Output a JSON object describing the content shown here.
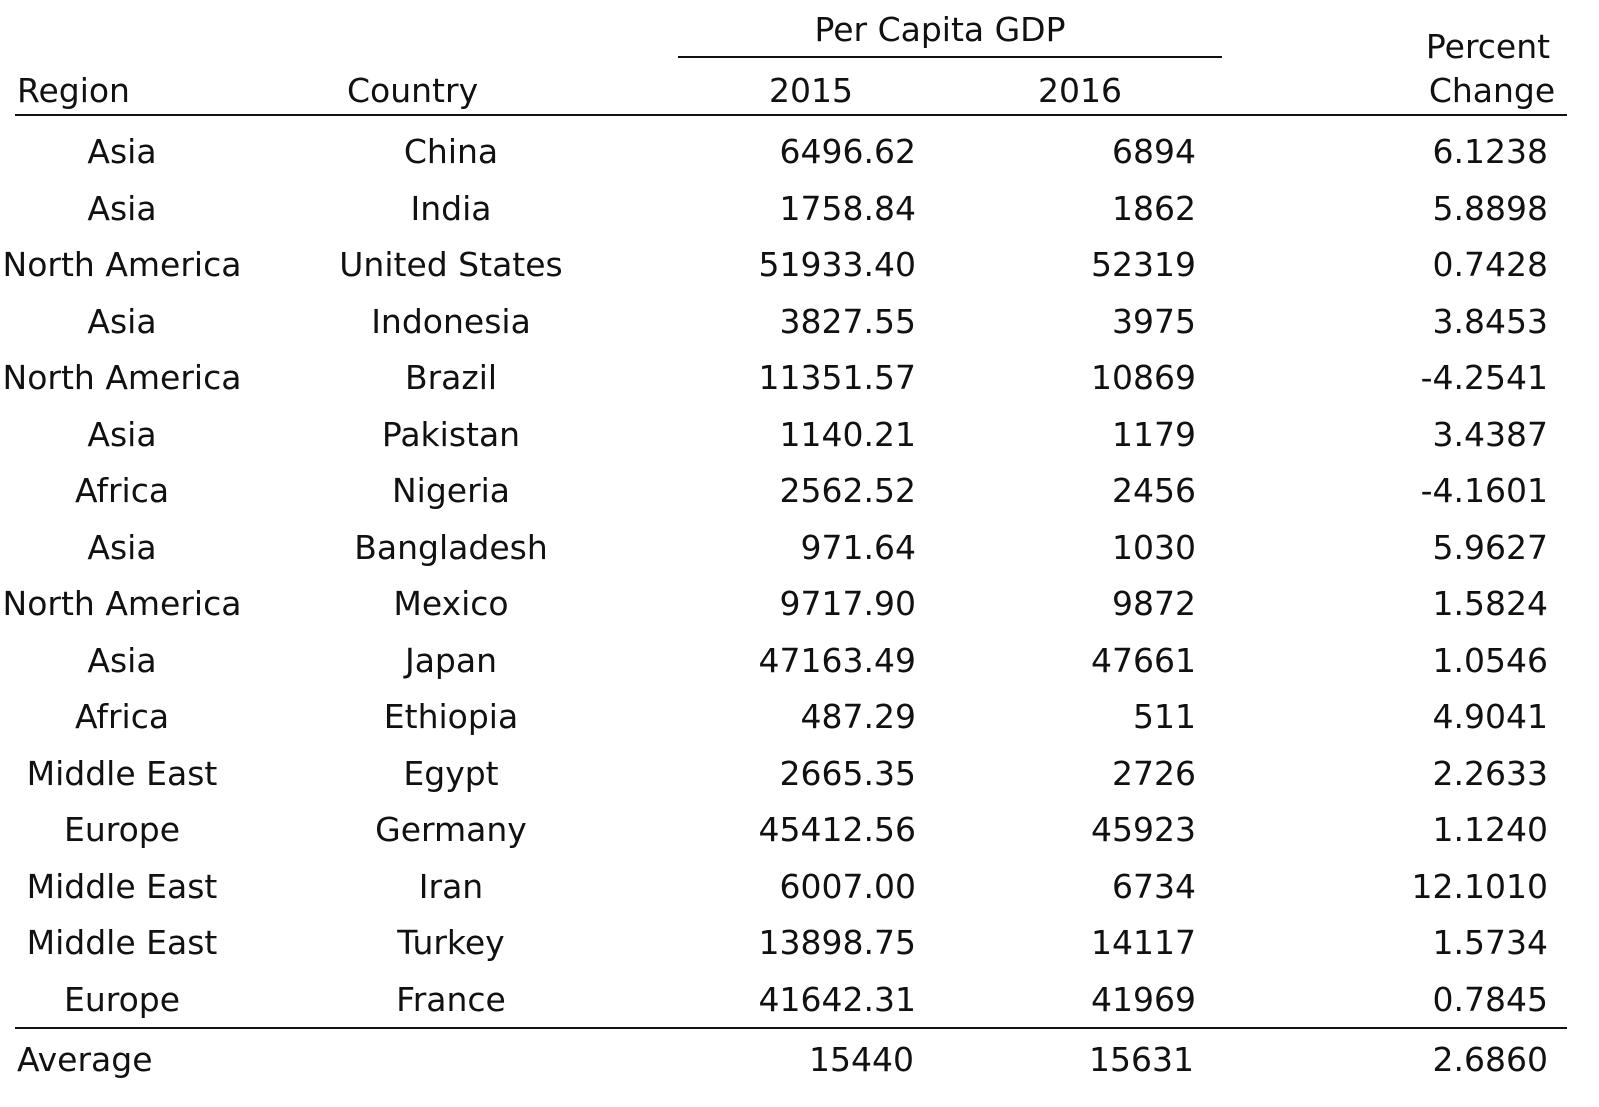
{
  "table": {
    "group_header": "Per Capita GDP",
    "headers": {
      "region": "Region",
      "country": "Country",
      "year1": "2015",
      "year2": "2016",
      "percent_line1": "Percent",
      "percent_line2": "Change"
    },
    "rows": [
      {
        "region": "Asia",
        "country": "China",
        "gdp2015": "6496.62",
        "gdp2016": "6894",
        "change": "6.1238"
      },
      {
        "region": "Asia",
        "country": "India",
        "gdp2015": "1758.84",
        "gdp2016": "1862",
        "change": "5.8898"
      },
      {
        "region": "North America",
        "country": "United States",
        "gdp2015": "51933.40",
        "gdp2016": "52319",
        "change": "0.7428"
      },
      {
        "region": "Asia",
        "country": "Indonesia",
        "gdp2015": "3827.55",
        "gdp2016": "3975",
        "change": "3.8453"
      },
      {
        "region": "North America",
        "country": "Brazil",
        "gdp2015": "11351.57",
        "gdp2016": "10869",
        "change": "-4.2541"
      },
      {
        "region": "Asia",
        "country": "Pakistan",
        "gdp2015": "1140.21",
        "gdp2016": "1179",
        "change": "3.4387"
      },
      {
        "region": "Africa",
        "country": "Nigeria",
        "gdp2015": "2562.52",
        "gdp2016": "2456",
        "change": "-4.1601"
      },
      {
        "region": "Asia",
        "country": "Bangladesh",
        "gdp2015": "971.64",
        "gdp2016": "1030",
        "change": "5.9627"
      },
      {
        "region": "North America",
        "country": "Mexico",
        "gdp2015": "9717.90",
        "gdp2016": "9872",
        "change": "1.5824"
      },
      {
        "region": "Asia",
        "country": "Japan",
        "gdp2015": "47163.49",
        "gdp2016": "47661",
        "change": "1.0546"
      },
      {
        "region": "Africa",
        "country": "Ethiopia",
        "gdp2015": "487.29",
        "gdp2016": "511",
        "change": "4.9041"
      },
      {
        "region": "Middle East",
        "country": "Egypt",
        "gdp2015": "2665.35",
        "gdp2016": "2726",
        "change": "2.2633"
      },
      {
        "region": "Europe",
        "country": "Germany",
        "gdp2015": "45412.56",
        "gdp2016": "45923",
        "change": "1.1240"
      },
      {
        "region": "Middle East",
        "country": "Iran",
        "gdp2015": "6007.00",
        "gdp2016": "6734",
        "change": "12.1010"
      },
      {
        "region": "Middle East",
        "country": "Turkey",
        "gdp2015": "13898.75",
        "gdp2016": "14117",
        "change": "1.5734"
      },
      {
        "region": "Europe",
        "country": "France",
        "gdp2015": "41642.31",
        "gdp2016": "41969",
        "change": "0.7845"
      }
    ],
    "average": {
      "label": "Average",
      "gdp2015": "15440",
      "gdp2016": "15631",
      "change": "2.6860"
    }
  }
}
